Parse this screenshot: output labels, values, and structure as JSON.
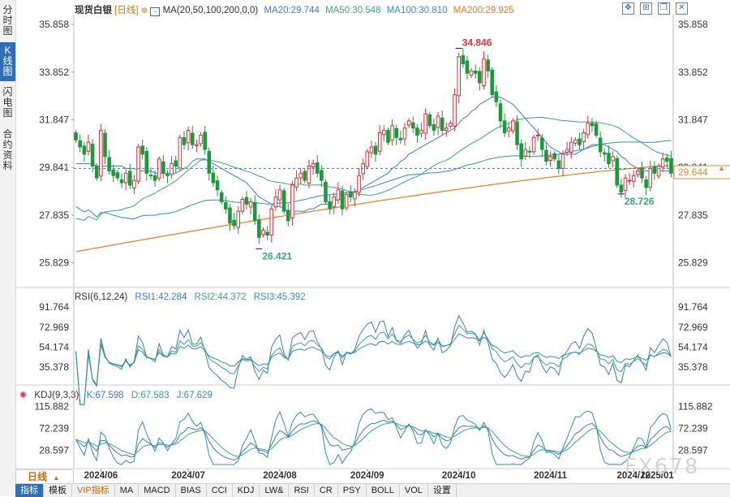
{
  "sidebar": {
    "tabs": [
      {
        "label": "分时图",
        "active": false
      },
      {
        "label": "K线图",
        "active": true
      },
      {
        "label": "闪电图",
        "active": false
      },
      {
        "label": "合约资料",
        "active": false
      }
    ]
  },
  "header": {
    "instrument": "现货白银",
    "period_tag": "[日线]",
    "ma_label": "MA(20,50,100,200,0,0)",
    "ma20": "MA20:29.744",
    "ma50": "MA50:30.548",
    "ma100": "MA100:30.810",
    "ma200": "MA200:29.925"
  },
  "toolbar_icons": [
    "expand-icon",
    "grid-icon",
    "restore-icon",
    "close-icon"
  ],
  "price_axis": [
    "35.858",
    "33.852",
    "31.847",
    "29.841",
    "27.835",
    "25.829"
  ],
  "current_price": "29.644",
  "markers": {
    "high": "34.846",
    "low": "26.421",
    "recent_low": "28.726"
  },
  "rsi": {
    "label": "RSI(6,12,24)",
    "rsi1": "RSI1:42.284",
    "rsi2": "RSI2:44.372",
    "rsi3": "RSI3:45.392",
    "axis": [
      "91.764",
      "72.969",
      "54.174",
      "35.378"
    ]
  },
  "kdj": {
    "label": "KDJ(9,3,3)",
    "k": "K:67.598",
    "d": "D:67.583",
    "j": "J:67.629",
    "axis": [
      "115.882",
      "72.239",
      "28.597"
    ]
  },
  "time_axis": [
    "2024/06",
    "2024/07",
    "2024/08",
    "2024/09",
    "2024/10",
    "2024/11",
    "2024/12",
    "2025/01"
  ],
  "period_button": "日线",
  "bottom_tabs": [
    "指标",
    "模板",
    "VIP指标",
    "MA",
    "MACD",
    "BIAS",
    "CCI",
    "KDJ",
    "LW&",
    "RSI",
    "CR",
    "PSY",
    "BOLL",
    "VOL",
    "设置"
  ],
  "watermark": "FX678",
  "colors": {
    "up": "#e0313a",
    "down": "#1a9a3a",
    "ma20": "#3a7bd5",
    "ma50": "#3aa87a",
    "ma100": "#2f6fb7",
    "ma200": "#f07a20",
    "accent": "#2f6fb7"
  },
  "chart_data": {
    "type": "candlestick",
    "title": "现货白银 [日线]",
    "ylim": [
      25.0,
      36.2
    ],
    "x_range": [
      "2024-05-28",
      "2025-01-06"
    ],
    "series": [
      {
        "name": "MA20",
        "current": 29.744
      },
      {
        "name": "MA50",
        "current": 30.548
      },
      {
        "name": "MA100",
        "current": 30.81
      },
      {
        "name": "MA200",
        "current": 29.925
      }
    ],
    "approx_close": [
      31.0,
      30.7,
      30.4,
      30.9,
      29.9,
      29.4,
      31.4,
      30.3,
      29.7,
      29.5,
      29.4,
      29.2,
      29.6,
      29.1,
      29.3,
      30.7,
      30.4,
      29.6,
      29.5,
      29.3,
      30.2,
      29.6,
      29.5,
      30.0,
      29.9,
      31.1,
      30.8,
      31.4,
      30.8,
      30.8,
      31.2,
      30.6,
      29.6,
      29.2,
      28.9,
      28.4,
      28.1,
      27.5,
      27.4,
      28.0,
      28.5,
      28.3,
      28.4,
      27.6,
      26.9,
      27.2,
      27.0,
      28.1,
      28.6,
      28.9,
      28.0,
      27.6,
      29.1,
      29.4,
      29.6,
      29.3,
      29.9,
      30.0,
      29.6,
      29.3,
      28.4,
      28.1,
      28.6,
      28.9,
      28.1,
      28.7,
      28.6,
      28.8,
      29.5,
      30.0,
      30.5,
      30.7,
      30.4,
      31.3,
      31.4,
      30.9,
      31.6,
      31.1,
      31.0,
      31.5,
      31.8,
      31.5,
      31.2,
      31.4,
      32.1,
      31.6,
      31.4,
      32.0,
      31.4,
      31.5,
      31.7,
      32.9,
      34.5,
      34.2,
      33.8,
      33.9,
      33.8,
      33.4,
      34.4,
      33.9,
      32.9,
      32.6,
      31.8,
      31.3,
      31.5,
      31.8,
      30.8,
      30.2,
      30.6,
      30.5,
      31.1,
      31.2,
      30.6,
      30.1,
      30.3,
      30.2,
      29.8,
      30.4,
      30.6,
      30.9,
      31.0,
      30.8,
      31.3,
      31.7,
      31.6,
      31.2,
      30.5,
      30.4,
      30.0,
      30.3,
      29.1,
      28.8,
      29.4,
      29.3,
      29.5,
      29.7,
      29.4,
      29.0,
      29.8,
      29.6,
      29.9,
      30.2,
      30.1,
      29.6
    ],
    "approx_ma20": [
      30.0,
      30.0,
      30.0,
      30.0,
      30.0,
      29.9,
      29.9,
      29.9,
      29.9,
      29.9,
      29.9,
      29.9,
      29.8,
      29.8,
      29.8,
      29.7,
      29.7,
      29.7,
      29.7,
      29.6,
      29.6,
      29.6,
      29.6,
      29.6,
      29.6,
      29.7,
      29.8,
      29.9,
      30.1,
      30.2,
      30.2,
      30.2,
      30.1,
      30.0,
      29.9,
      29.8,
      29.7,
      29.6,
      29.5,
      29.4,
      29.3,
      29.2,
      29.0,
      28.8,
      28.6,
      28.5,
      28.4,
      28.3,
      28.2,
      28.2,
      28.1,
      28.0,
      28.0,
      28.0,
      28.0,
      28.0,
      28.1,
      28.1,
      28.2,
      28.3,
      28.3,
      28.3,
      28.4,
      28.5,
      28.5,
      28.6,
      28.7,
      28.8,
      28.9,
      29.0,
      29.1,
      29.2,
      29.3,
      29.4,
      29.5,
      29.6,
      29.8,
      29.9,
      30.1,
      30.2,
      30.4,
      30.5,
      30.6,
      30.7,
      30.8,
      30.9,
      31.0,
      31.1,
      31.2,
      31.3,
      31.4,
      31.5,
      31.7,
      31.9,
      32.0,
      32.2,
      32.3,
      32.5,
      32.6,
      32.7,
      32.8,
      32.8,
      32.8,
      32.7,
      32.6,
      32.5,
      32.3,
      32.1,
      31.9,
      31.7,
      31.5,
      31.3,
      31.1,
      30.9,
      30.7,
      30.6,
      30.5,
      30.4,
      30.4,
      30.4,
      30.4,
      30.5,
      30.6,
      30.7,
      30.8,
      30.8,
      30.8,
      30.8,
      30.7,
      30.6,
      30.5,
      30.3,
      30.2,
      30.0,
      29.9,
      29.8,
      29.7,
      29.7,
      29.7,
      29.7,
      29.7,
      29.7,
      29.7,
      29.7
    ],
    "approx_ma200_start": 26.3,
    "approx_ma200_end": 29.925
  }
}
